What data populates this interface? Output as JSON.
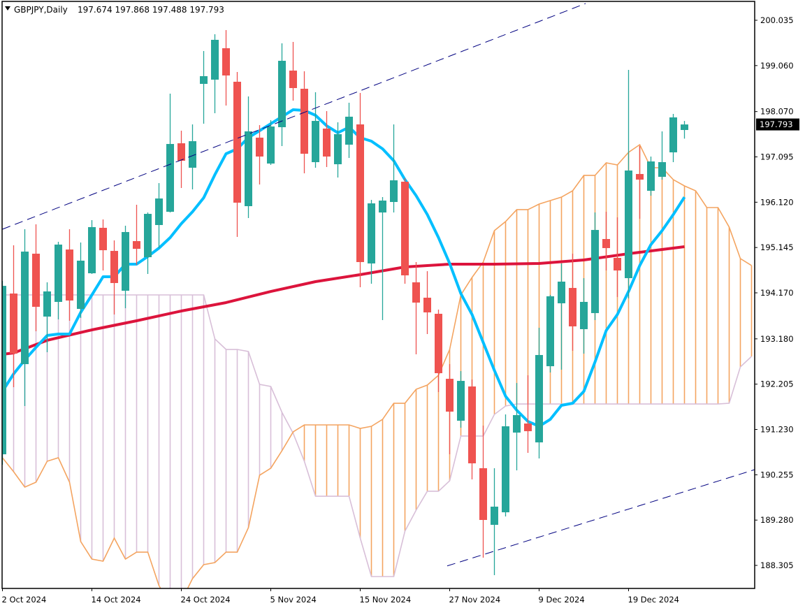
{
  "chart_data": {
    "type": "candlestick",
    "title": "GBPJPY,Daily",
    "header_ohlc": "197.674 197.868 197.488 197.793",
    "current_price": "197.793",
    "ylim": [
      187.68,
      200.47
    ],
    "y_ticks": [
      "200.035",
      "199.060",
      "198.070",
      "197.095",
      "196.120",
      "195.145",
      "194.170",
      "193.180",
      "192.205",
      "191.230",
      "190.255",
      "189.280",
      "188.305"
    ],
    "x_ticks": [
      {
        "label": "2 Oct 2024",
        "bar": 0
      },
      {
        "label": "14 Oct 2024",
        "bar": 8
      },
      {
        "label": "24 Oct 2024",
        "bar": 16
      },
      {
        "label": "5 Nov 2024",
        "bar": 24
      },
      {
        "label": "15 Nov 2024",
        "bar": 32
      },
      {
        "label": "27 Nov 2024",
        "bar": 40
      },
      {
        "label": "9 Dec 2024",
        "bar": 48
      },
      {
        "label": "19 Dec 2024",
        "bar": 56
      }
    ],
    "candles_ohlc": [
      [
        190.696,
        194.426,
        190.471,
        194.32
      ],
      [
        194.155,
        195.193,
        192.14,
        192.862
      ],
      [
        192.636,
        195.539,
        191.734,
        195.057
      ],
      [
        195.012,
        195.644,
        193.343,
        193.869
      ],
      [
        193.659,
        194.396,
        192.892,
        194.2
      ],
      [
        193.975,
        195.268,
        193.599,
        195.208
      ],
      [
        195.102,
        195.539,
        193.569,
        194.005
      ],
      [
        193.824,
        195.253,
        193.629,
        194.862
      ],
      [
        194.591,
        195.734,
        194.576,
        195.584
      ],
      [
        195.569,
        195.749,
        194.651,
        195.087
      ],
      [
        195.072,
        195.298,
        193.704,
        194.381
      ],
      [
        194.215,
        195.614,
        193.839,
        195.478
      ],
      [
        195.283,
        196.065,
        194.772,
        195.117
      ],
      [
        194.937,
        195.899,
        194.576,
        195.869
      ],
      [
        195.629,
        196.531,
        195.133,
        196.2
      ],
      [
        195.914,
        198.456,
        195.899,
        197.373
      ],
      [
        197.388,
        197.659,
        196.426,
        197.012
      ],
      [
        196.862,
        197.794,
        196.396,
        197.433
      ],
      [
        198.666,
        199.373,
        197.809,
        198.832
      ],
      [
        198.757,
        199.734,
        198.035,
        199.614
      ],
      [
        199.433,
        199.824,
        198.2,
        198.847
      ],
      [
        198.712,
        198.922,
        195.373,
        196.11
      ],
      [
        196.035,
        198.396,
        195.779,
        197.644
      ],
      [
        197.509,
        197.779,
        196.501,
        197.103
      ],
      [
        196.952,
        197.885,
        196.922,
        197.749
      ],
      [
        197.734,
        199.539,
        197.328,
        199.163
      ],
      [
        198.952,
        199.569,
        198.306,
        198.576
      ],
      [
        198.561,
        198.937,
        196.742,
        197.163
      ],
      [
        196.982,
        198.486,
        196.862,
        197.869
      ],
      [
        197.704,
        198.08,
        196.877,
        197.103
      ],
      [
        196.937,
        197.839,
        196.651,
        197.584
      ],
      [
        197.358,
        198.26,
        197.072,
        197.96
      ],
      [
        197.794,
        198.471,
        194.29,
        194.832
      ],
      [
        194.802,
        196.17,
        194.366,
        196.095
      ],
      [
        195.899,
        196.23,
        193.584,
        196.155
      ],
      [
        196.125,
        197.794,
        195.899,
        196.591
      ],
      [
        196.561,
        196.636,
        194.366,
        194.546
      ],
      [
        194.396,
        194.832,
        192.847,
        193.96
      ],
      [
        194.065,
        194.636,
        193.283,
        193.749
      ],
      [
        193.719,
        193.809,
        192.035,
        192.441
      ],
      [
        192.32,
        192.636,
        190.696,
        191.614
      ],
      [
        191.418,
        192.486,
        191.268,
        192.275
      ],
      [
        192.155,
        192.305,
        190.155,
        190.501
      ],
      [
        190.396,
        191.313,
        188.471,
        189.283
      ],
      [
        189.178,
        190.396,
        188.095,
        189.569
      ],
      [
        189.448,
        191.554,
        189.358,
        191.298
      ],
      [
        191.163,
        192.23,
        190.35,
        191.539
      ],
      [
        191.358,
        192.396,
        190.726,
        191.193
      ],
      [
        190.952,
        193.418,
        190.606,
        192.832
      ],
      [
        192.591,
        194.125,
        192.456,
        194.095
      ],
      [
        193.945,
        194.802,
        192.516,
        194.411
      ],
      [
        194.275,
        195.012,
        192.922,
        193.448
      ],
      [
        193.388,
        194.486,
        192.862,
        193.975
      ],
      [
        193.734,
        195.899,
        193.584,
        195.523
      ],
      [
        195.328,
        195.914,
        194.651,
        195.133
      ],
      [
        194.922,
        195.794,
        194.08,
        194.651
      ],
      [
        194.486,
        198.967,
        194.05,
        196.802
      ],
      [
        196.727,
        197.328,
        195.764,
        196.606
      ],
      [
        196.366,
        197.102,
        196.26,
        196.997
      ],
      [
        196.666,
        197.644,
        196.606,
        196.982
      ],
      [
        197.193,
        198.02,
        196.982,
        197.945
      ],
      [
        197.674,
        197.868,
        197.488,
        197.793
      ]
    ],
    "ma_fast": [
      192.05,
      192.426,
      192.727,
      192.997,
      193.253,
      193.283,
      193.283,
      193.749,
      194.125,
      194.516,
      194.516,
      194.787,
      194.787,
      194.952,
      195.133,
      195.358,
      195.659,
      195.915,
      196.215,
      196.712,
      197.163,
      197.268,
      197.509,
      197.659,
      197.809,
      197.96,
      198.11,
      198.095,
      197.99,
      197.764,
      197.614,
      197.734,
      197.509,
      197.433,
      197.268,
      197.012,
      196.606,
      196.26,
      195.854,
      195.358,
      194.802,
      194.155,
      193.704,
      193.103,
      192.501,
      191.945,
      191.644,
      191.403,
      191.298,
      191.448,
      191.749,
      191.794,
      192.05,
      192.682,
      193.358,
      193.704,
      194.2,
      194.757,
      195.208,
      195.509,
      195.854,
      196.23
    ],
    "ma_slow_points": [
      [
        0,
        192.847
      ],
      [
        1,
        192.877
      ],
      [
        4,
        193.148
      ],
      [
        8,
        193.373
      ],
      [
        12,
        193.569
      ],
      [
        16,
        193.779
      ],
      [
        20,
        193.96
      ],
      [
        24,
        194.2
      ],
      [
        28,
        194.411
      ],
      [
        32,
        194.561
      ],
      [
        36,
        194.727
      ],
      [
        40,
        194.787
      ],
      [
        44,
        194.787
      ],
      [
        48,
        194.802
      ],
      [
        52,
        194.877
      ],
      [
        56,
        195.012
      ],
      [
        61,
        195.163
      ]
    ],
    "ichimoku": {
      "span_a": [
        190.621,
        190.321,
        189.99,
        190.095,
        190.546,
        190.621,
        190.095,
        188.817,
        188.441,
        188.396,
        188.892,
        188.441,
        188.591,
        188.591,
        187.869,
        187.463,
        187.539,
        188.02,
        188.321,
        188.366,
        188.591,
        188.591,
        189.118,
        190.245,
        190.396,
        190.772,
        191.178,
        191.328,
        191.328,
        191.328,
        191.328,
        191.328,
        191.253,
        191.298,
        191.448,
        191.794,
        191.794,
        192.095,
        192.185,
        192.396,
        192.952,
        194.125,
        194.501,
        194.832,
        195.509,
        195.704,
        195.96,
        195.96,
        196.08,
        196.155,
        196.23,
        196.366,
        196.697,
        196.697,
        196.967,
        196.922,
        197.193,
        197.358,
        196.862,
        196.862,
        196.606,
        196.471,
        196.366,
        196.005,
        196.005,
        195.584,
        194.907,
        194.757
      ],
      "span_b": [
        194.125,
        194.125,
        194.125,
        194.125,
        194.125,
        194.125,
        194.125,
        194.125,
        194.125,
        194.125,
        194.125,
        194.125,
        194.125,
        194.125,
        194.125,
        194.125,
        194.125,
        194.125,
        194.125,
        193.178,
        192.952,
        192.952,
        192.907,
        192.2,
        192.155,
        191.599,
        191.148,
        190.546,
        189.794,
        189.794,
        189.794,
        189.794,
        188.892,
        188.065,
        188.065,
        188.065,
        189.042,
        189.494,
        189.9,
        189.9,
        190.125,
        191.088,
        191.088,
        191.088,
        191.554,
        191.734,
        191.779,
        191.779,
        191.779,
        191.779,
        191.779,
        191.779,
        191.779,
        191.779,
        191.779,
        191.779,
        191.779,
        191.779,
        191.779,
        191.779,
        191.779,
        191.779,
        191.779,
        191.779,
        191.779,
        191.794,
        192.576,
        192.802
      ]
    },
    "trendlines": [
      {
        "name": "upper-channel",
        "from": [
          0,
          195.539
        ],
        "to": [
          52.16,
          200.396
        ]
      },
      {
        "name": "lower-channel",
        "from": [
          39.78,
          188.294
        ],
        "to": [
          67.28,
          190.366
        ]
      }
    ]
  },
  "colors": {
    "bull": "#26A69A",
    "bear": "#EF5350",
    "ma_fast": "#00BFFF",
    "ma_slow": "#DC143C",
    "span_a": "#F4A460",
    "span_b": "#D8BFD8",
    "trendline": "#000080",
    "price_box": "#000000"
  }
}
